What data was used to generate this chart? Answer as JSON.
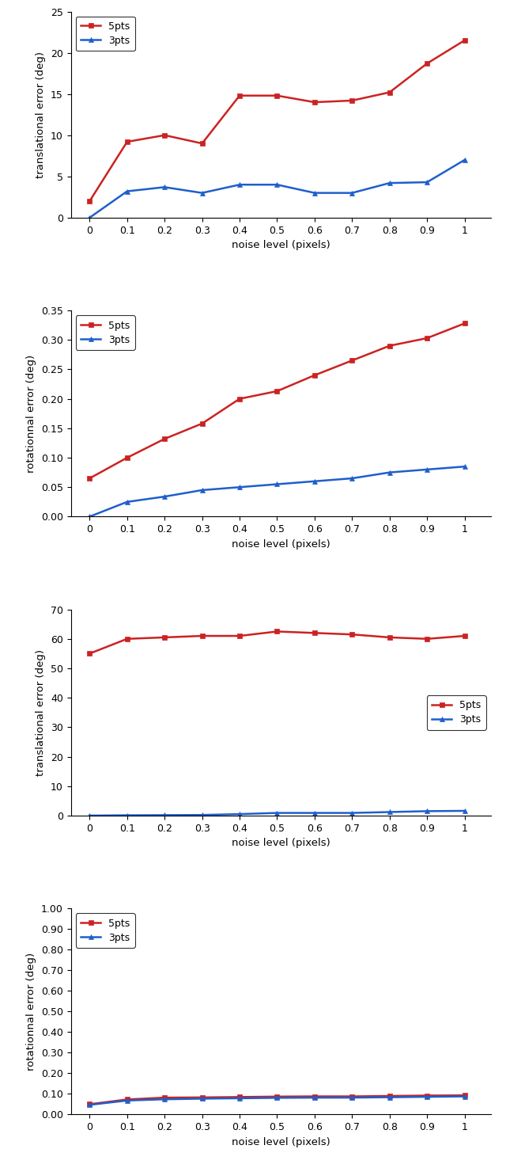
{
  "x": [
    0,
    0.1,
    0.2,
    0.3,
    0.4,
    0.5,
    0.6,
    0.7,
    0.8,
    0.9,
    1
  ],
  "x_labels": [
    "0",
    "0.1",
    "0.2",
    "0.3",
    "0.4",
    "0.5",
    "0.6",
    "0.7",
    "0.8",
    "0.9",
    "1"
  ],
  "plot1": {
    "ylabel": "translational error (deg)",
    "xlabel": "noise level (pixels)",
    "ylim": [
      0,
      25
    ],
    "yticks": [
      0,
      5,
      10,
      15,
      20,
      25
    ],
    "legend_loc": "upper left",
    "5pts": [
      2.0,
      9.2,
      10.0,
      9.0,
      14.8,
      14.8,
      14.0,
      14.2,
      15.2,
      18.7,
      21.5
    ],
    "3pts": [
      0.0,
      3.2,
      3.7,
      3.0,
      4.0,
      4.0,
      3.0,
      3.0,
      4.2,
      4.3,
      7.0
    ]
  },
  "plot2": {
    "ylabel": "rotationnal error (deg)",
    "xlabel": "noise level (pixels)",
    "ylim": [
      0,
      0.35
    ],
    "yticks": [
      0.0,
      0.05,
      0.1,
      0.15,
      0.2,
      0.25,
      0.3,
      0.35
    ],
    "legend_loc": "upper left",
    "5pts": [
      0.065,
      0.1,
      0.132,
      0.158,
      0.2,
      0.213,
      0.24,
      0.265,
      0.29,
      0.303,
      0.328
    ],
    "3pts": [
      0.0,
      0.025,
      0.034,
      0.045,
      0.05,
      0.055,
      0.06,
      0.065,
      0.075,
      0.08,
      0.085
    ]
  },
  "plot3": {
    "ylabel": "translational error (deg)",
    "xlabel": "noise level (pixels)",
    "ylim": [
      0,
      70
    ],
    "yticks": [
      0,
      10,
      20,
      30,
      40,
      50,
      60,
      70
    ],
    "legend_loc": "center right",
    "5pts": [
      55.0,
      60.0,
      60.5,
      61.0,
      61.0,
      62.5,
      62.0,
      61.5,
      60.5,
      60.0,
      61.0
    ],
    "3pts": [
      0.0,
      0.1,
      0.15,
      0.2,
      0.5,
      0.9,
      0.9,
      0.9,
      1.2,
      1.5,
      1.6
    ]
  },
  "plot4": {
    "ylabel": "rotationnal error (deg)",
    "xlabel": "noise level (pixels)",
    "ylim": [
      0.0,
      1.0
    ],
    "yticks": [
      0.0,
      0.1,
      0.2,
      0.3,
      0.4,
      0.5,
      0.6,
      0.7,
      0.8,
      0.9,
      1.0
    ],
    "legend_loc": "upper left",
    "5pts": [
      0.05,
      0.073,
      0.082,
      0.083,
      0.085,
      0.087,
      0.088,
      0.088,
      0.09,
      0.092,
      0.093
    ],
    "3pts": [
      0.047,
      0.068,
      0.074,
      0.077,
      0.079,
      0.081,
      0.082,
      0.082,
      0.084,
      0.086,
      0.088
    ]
  },
  "color_5pts": "#cc2222",
  "color_3pts": "#1f5fcc",
  "marker_5pts": "s",
  "marker_3pts": "^",
  "markersize": 5,
  "linewidth": 1.8,
  "fig_width": 6.4,
  "fig_height": 14.51,
  "dpi": 100
}
